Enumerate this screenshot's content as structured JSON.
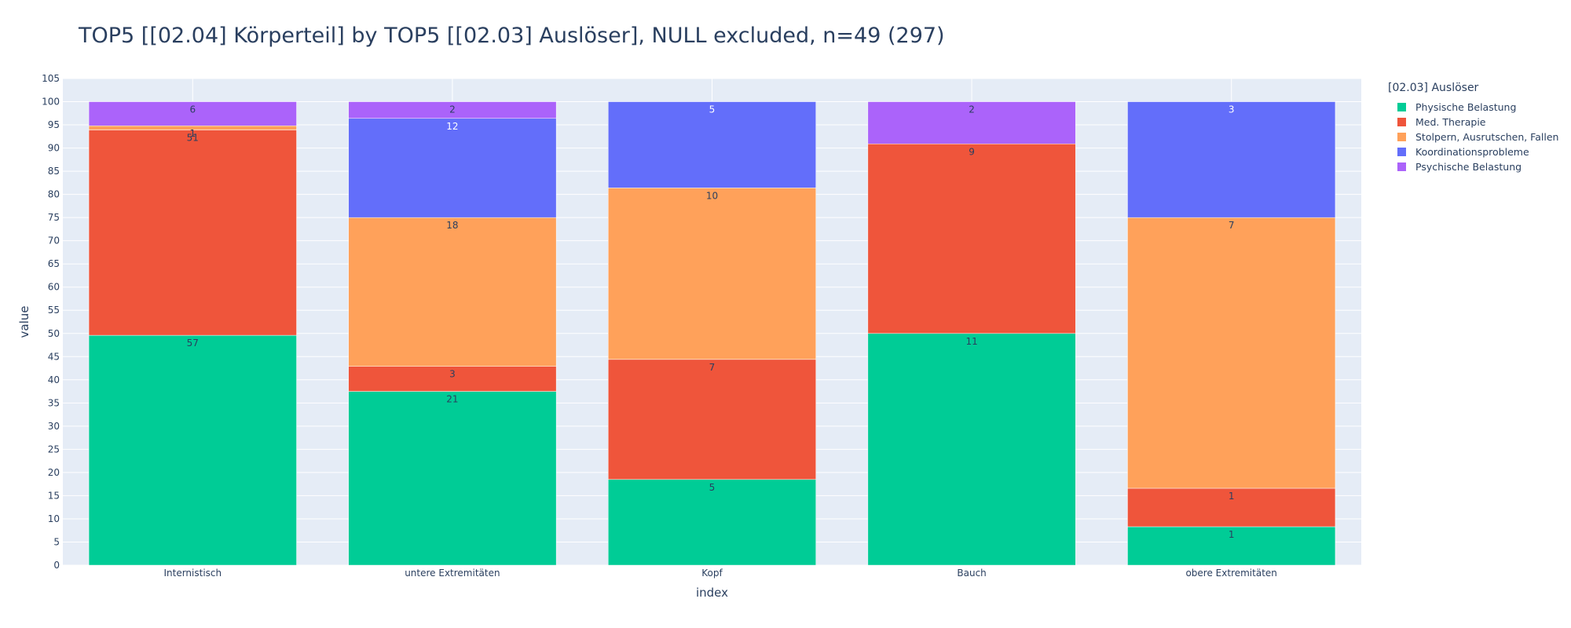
{
  "chart_data": {
    "type": "bar",
    "barmode": "stack",
    "title": "TOP5 [[02.04] Körperteil] by TOP5 [[02.03] Auslöser], NULL excluded, n=49 (297)",
    "xlabel": "index",
    "ylabel": "value",
    "ylim": [
      0,
      105
    ],
    "ytick_step": 5,
    "grid": true,
    "legend_title": "[02.03] Auslöser",
    "legend_position": "right",
    "categories": [
      "Internistisch",
      "untere Extremitäten",
      "Kopf",
      "Bauch",
      "obere Extremitäten"
    ],
    "series": [
      {
        "name": "Physische Belastung",
        "color": "#00cc96",
        "values": [
          49.6,
          37.5,
          18.5,
          50.0,
          8.3
        ],
        "labels": [
          "57",
          "21",
          "5",
          "11",
          "1"
        ]
      },
      {
        "name": "Med. Therapie",
        "color": "#ef553b",
        "values": [
          44.3,
          5.4,
          25.9,
          40.9,
          8.3
        ],
        "labels": [
          "51",
          "3",
          "7",
          "9",
          "1"
        ]
      },
      {
        "name": "Stolpern, Ausrutschen, Fallen",
        "color": "#ffa15a",
        "values": [
          0.9,
          32.1,
          37.0,
          0,
          58.4
        ],
        "labels": [
          "1",
          "18",
          "10",
          "",
          "7"
        ]
      },
      {
        "name": "Koordinationsprobleme",
        "color": "#636efa",
        "values": [
          0,
          21.4,
          18.6,
          0,
          25.0
        ],
        "labels": [
          "",
          "12",
          "5",
          "",
          "3"
        ]
      },
      {
        "name": "Psychische Belastung",
        "color": "#ab63fa",
        "values": [
          5.2,
          3.6,
          0,
          9.1,
          0
        ],
        "labels": [
          "6",
          "2",
          "",
          "2",
          ""
        ]
      }
    ]
  }
}
